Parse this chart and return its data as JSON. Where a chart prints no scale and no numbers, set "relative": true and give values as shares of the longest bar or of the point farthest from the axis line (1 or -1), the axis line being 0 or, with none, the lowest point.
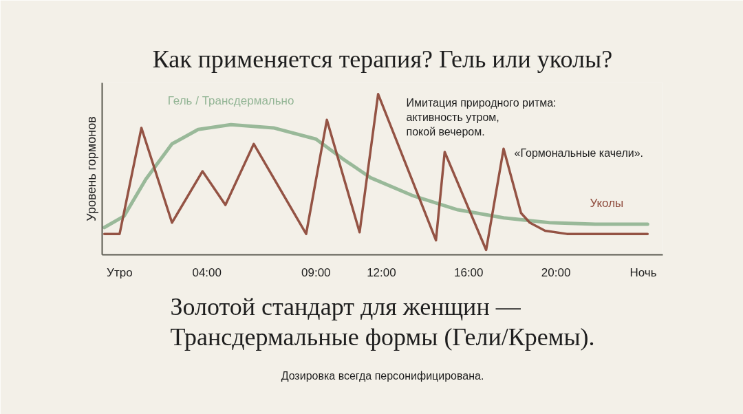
{
  "chart_data": {
    "type": "line",
    "title": "Как применяется терапия? Гель или уколы?",
    "ylabel": "Уровень гормонов",
    "relative": true,
    "xlim": [
      -0.8,
      24.9
    ],
    "xticks": [
      {
        "value": 0,
        "label": "Утро"
      },
      {
        "value": 4,
        "label": "04:00"
      },
      {
        "value": 9,
        "label": "09:00"
      },
      {
        "value": 12,
        "label": "12:00"
      },
      {
        "value": 16,
        "label": "16:00"
      },
      {
        "value": 20,
        "label": "20:00"
      },
      {
        "value": 24,
        "label": "Ночь"
      }
    ],
    "grid": false,
    "series": [
      {
        "name": "Гель / Трансдермально",
        "color": "#93b595",
        "x": [
          -0.7,
          0.2,
          1.2,
          2.4,
          3.6,
          5.1,
          7.05,
          9.0,
          10.2,
          11.5,
          13.4,
          15.5,
          17.6,
          19.7,
          21.8,
          24.2
        ],
        "values": [
          0.17,
          0.24,
          0.47,
          0.69,
          0.78,
          0.81,
          0.79,
          0.72,
          0.6,
          0.48,
          0.37,
          0.28,
          0.23,
          0.2,
          0.19,
          0.19
        ]
      },
      {
        "name": "Уколы",
        "color": "#8e4a3b",
        "x": [
          -0.7,
          0,
          1.0,
          2.4,
          3.8,
          4.85,
          6.15,
          8.55,
          9.5,
          11.0,
          11.85,
          14.5,
          14.9,
          16.8,
          17.6,
          18.4,
          18.8,
          19.5,
          20.5,
          24.2
        ],
        "values": [
          0.13,
          0.13,
          0.79,
          0.2,
          0.52,
          0.31,
          0.69,
          0.13,
          0.84,
          0.14,
          1,
          0.09,
          0.64,
          0.03,
          0.66,
          0.26,
          0.2,
          0.15,
          0.13,
          0.13
        ]
      }
    ],
    "annotations": [
      "Имитация природного ритма:\nактивность утром,\nпокой вечером.",
      "«Гормональные качели».",
      "Золотой стандарт для женщин —\nТрансдермальные формы (Гели/Кремы).",
      "Дозировка всегда персонифицирована."
    ]
  }
}
